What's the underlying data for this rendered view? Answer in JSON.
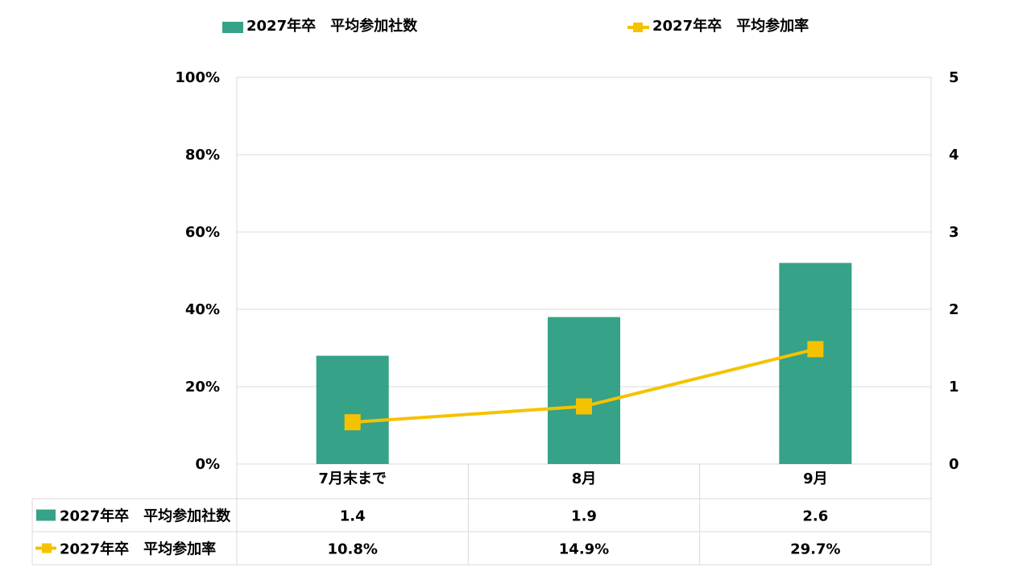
{
  "colors": {
    "bar": "#36a287",
    "line": "#f5c200",
    "grid": "#d9d9d9"
  },
  "chart_data": {
    "type": "bar",
    "categories": [
      "7月末まで",
      "8月",
      "9月"
    ],
    "series": [
      {
        "name": "2027年卒　平均参加社数",
        "type": "bar",
        "axis": "right",
        "values": [
          1.4,
          1.9,
          2.6
        ],
        "labels": [
          "1.4",
          "1.9",
          "2.6"
        ]
      },
      {
        "name": "2027年卒　平均参加率",
        "type": "line",
        "axis": "left",
        "values": [
          10.8,
          14.9,
          29.7
        ],
        "labels": [
          "10.8%",
          "14.9%",
          "29.7%"
        ]
      }
    ],
    "left_axis": {
      "ylim": [
        0,
        100
      ],
      "ticks": [
        "0%",
        "20%",
        "40%",
        "60%",
        "80%",
        "100%"
      ]
    },
    "right_axis": {
      "ylim": [
        0,
        5
      ],
      "ticks": [
        "0",
        "1",
        "2",
        "3",
        "4",
        "5"
      ]
    },
    "grid": true,
    "legend": "top",
    "data_table": true
  }
}
